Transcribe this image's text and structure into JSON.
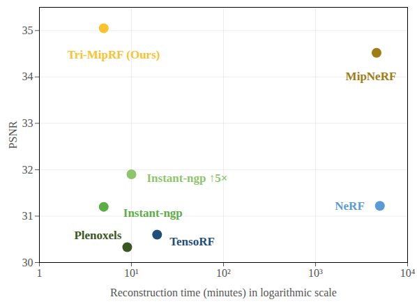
{
  "chart_data": {
    "type": "scatter",
    "x_label": "Reconstruction time (minutes) in logarithmic scale",
    "y_label": "PSNR",
    "log": "x",
    "grid": true,
    "xlim": [
      1,
      10000
    ],
    "xticks": [
      1,
      {
        "value": 10,
        "label": "10¹"
      },
      {
        "value": 100,
        "label": "10²"
      },
      {
        "value": 1000,
        "label": "10³"
      },
      {
        "value": 10000,
        "label": "10⁴"
      }
    ],
    "ylim": [
      30,
      35.5
    ],
    "yticks": [
      30,
      31,
      32,
      33,
      34,
      35
    ],
    "series": [
      {
        "name": "Tri-MipRF (Ours)",
        "color": "#f9c22e",
        "x": [
          5
        ],
        "values": [
          35.05
        ]
      },
      {
        "name": "MipNeRF",
        "color": "#a07c12",
        "x": [
          4600
        ],
        "values": [
          34.52
        ]
      },
      {
        "name": "Instant-ngp ↑5×",
        "color": "#8dc56b",
        "x": [
          10
        ],
        "values": [
          31.9
        ]
      },
      {
        "name": "Instant-ngp",
        "color": "#5bae45",
        "x": [
          5
        ],
        "values": [
          31.2
        ]
      },
      {
        "name": "NeRF",
        "color": "#5b9bd5",
        "x": [
          5000
        ],
        "values": [
          31.22
        ]
      },
      {
        "name": "TensoRF",
        "color": "#1f4e79",
        "x": [
          19
        ],
        "values": [
          30.6
        ]
      },
      {
        "name": "Plenoxels",
        "color": "#385723",
        "x": [
          9
        ],
        "values": [
          30.33
        ]
      }
    ]
  }
}
